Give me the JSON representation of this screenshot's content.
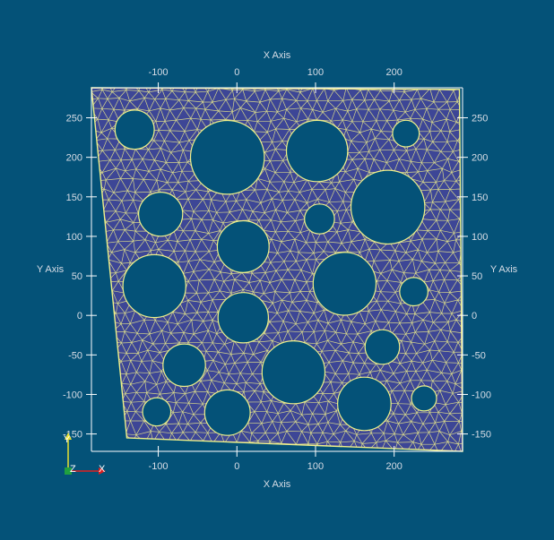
{
  "axes": {
    "x_title_top": "X Axis",
    "x_title_bottom": "X Axis",
    "y_title_left": "Y Axis",
    "y_title_right": "Y Axis",
    "x_range": [
      -185,
      287
    ],
    "y_range": [
      -172,
      288
    ],
    "x_ticks": [
      -100,
      0,
      100,
      200
    ],
    "y_ticks": [
      250,
      200,
      150,
      100,
      50,
      0,
      -50,
      -100,
      -150
    ],
    "x_tick_labels": [
      "-100",
      "0",
      "100",
      "200"
    ],
    "y_tick_labels": [
      "250",
      "200",
      "150",
      "100",
      "50",
      "0",
      "-50",
      "-100",
      "-150"
    ]
  },
  "mesh": {
    "outline": [
      [
        -185,
        288
      ],
      [
        283,
        286
      ],
      [
        287,
        -172
      ],
      [
        -140,
        -155
      ]
    ],
    "holes": [
      {
        "cx": -130,
        "cy": 235,
        "r": 25
      },
      {
        "cx": -12,
        "cy": 200,
        "r": 47
      },
      {
        "cx": 102,
        "cy": 208,
        "r": 39
      },
      {
        "cx": 215,
        "cy": 230,
        "r": 17
      },
      {
        "cx": -97,
        "cy": 128,
        "r": 28
      },
      {
        "cx": 105,
        "cy": 122,
        "r": 19
      },
      {
        "cx": 192,
        "cy": 137,
        "r": 47
      },
      {
        "cx": 8,
        "cy": 87,
        "r": 33
      },
      {
        "cx": -105,
        "cy": 37,
        "r": 40
      },
      {
        "cx": 137,
        "cy": 40,
        "r": 40
      },
      {
        "cx": 225,
        "cy": 30,
        "r": 18
      },
      {
        "cx": 8,
        "cy": -3,
        "r": 32
      },
      {
        "cx": 185,
        "cy": -40,
        "r": 22
      },
      {
        "cx": -67,
        "cy": -63,
        "r": 27
      },
      {
        "cx": 72,
        "cy": -72,
        "r": 40
      },
      {
        "cx": 162,
        "cy": -112,
        "r": 34
      },
      {
        "cx": 238,
        "cy": -105,
        "r": 16
      },
      {
        "cx": -102,
        "cy": -122,
        "r": 18
      },
      {
        "cx": -12,
        "cy": -123,
        "r": 29
      }
    ],
    "colors": {
      "fill": "#3d4696",
      "edges": "#f0f08a",
      "background": "#045278",
      "axes": "#ffffff",
      "text": "#d8dde6"
    }
  },
  "orientation": {
    "x_label": "X",
    "y_label": "Y",
    "z_label": "Z",
    "colors": {
      "x": "#e02020",
      "y": "#e8e030",
      "z": "#20a040"
    }
  }
}
